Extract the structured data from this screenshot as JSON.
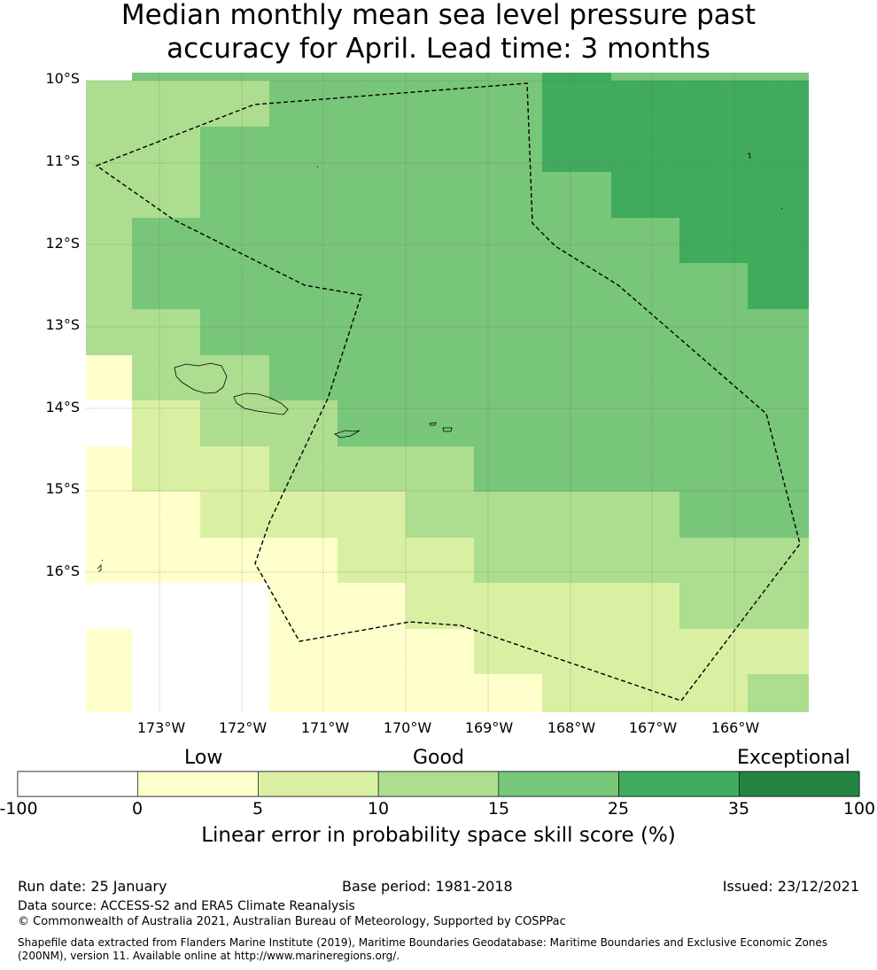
{
  "title": {
    "line1": "Median monthly mean sea level pressure past",
    "line2": "accuracy for April. Lead time: 3 months"
  },
  "map": {
    "lat_labels": [
      "10°S",
      "11°S",
      "12°S",
      "13°S",
      "14°S",
      "15°S",
      "16°S"
    ],
    "lon_labels": [
      "173°W",
      "172°W",
      "171°W",
      "170°W",
      "169°W",
      "168°W",
      "167°W",
      "166°W"
    ],
    "colors": {
      "c0": "#ffffff",
      "c1": "#ffffcc",
      "c2": "#d9f0a3",
      "c3": "#addd8e",
      "c4": "#78c679",
      "c5": "#41ab5d",
      "c6": "#238443"
    },
    "eez_boundary_style": "dashed"
  },
  "legend": {
    "categories": [
      "Low",
      "Good",
      "Exceptional"
    ],
    "ticks": [
      "-100",
      "0",
      "5",
      "10",
      "15",
      "25",
      "35",
      "100"
    ],
    "title": "Linear error in probability space skill score (%)"
  },
  "footer": {
    "run_date": "Run date: 25 January",
    "base_period": "Base period: 1981-2018",
    "issued": "Issued: 23/12/2021",
    "data_source": "Data source: ACCESS-S2 and ERA5 Climate Reanalysis",
    "copyright": "© Commonwealth of Australia 2021, Australian Bureau of Meteorology, Supported by COSPPac",
    "shapefile": "Shapefile data extracted from Flanders Marine Institute (2019), Maritime Boundaries Geodatabase: Maritime Boundaries and Exclusive Economic Zones (200NM), version 11. Available online at http://www.marineregions.org/."
  }
}
